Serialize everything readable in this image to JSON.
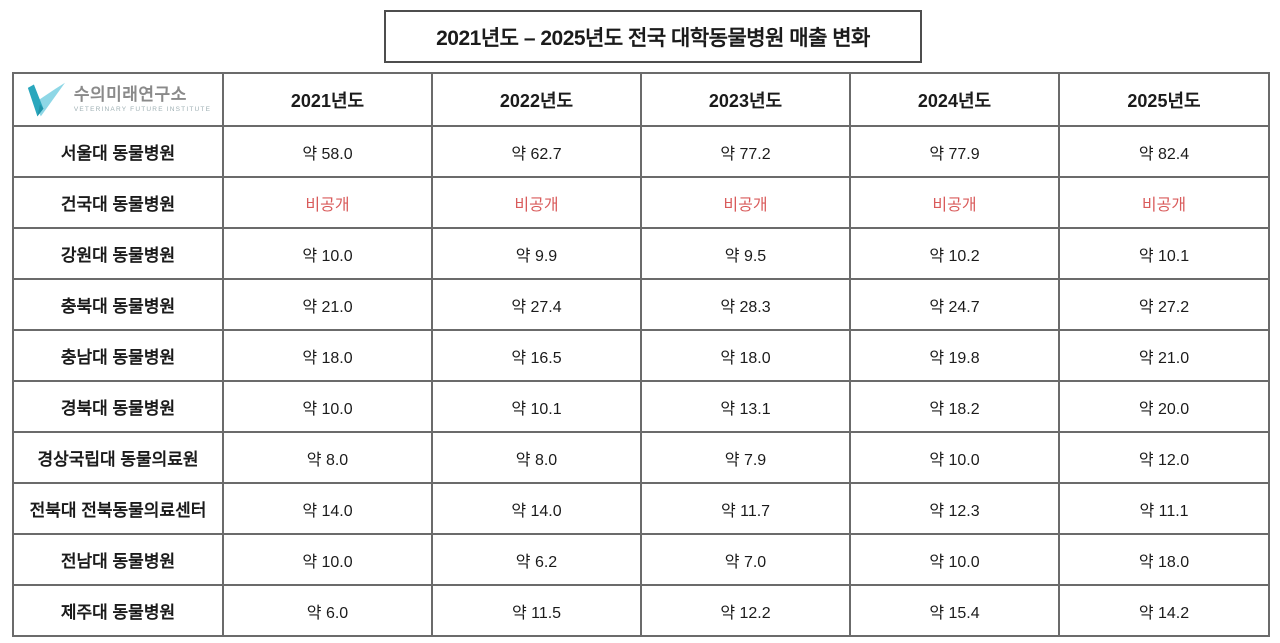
{
  "title_box": {
    "title": "2021년도 – 2025년도 전국 대학동물병원 매출 변화"
  },
  "logo": {
    "name_ko": "수의미래연구소",
    "name_en": "VETERINARY FUTURE INSTITUTE"
  },
  "colors": {
    "confidential_red": "#d95b5b",
    "table_border": "#6b6b6b",
    "logo_dark_teal": "#2aa7bd",
    "logo_light_blue": "#8ed7e6",
    "logo_text_gray": "#8a8a8a"
  },
  "chart_data": {
    "type": "table",
    "title": "2021년도 – 2025년도 전국 대학동물병원 매출 변화",
    "unit_note": "values shown as displayed, e.g. 약 = approx.",
    "columns": [
      "2021년도",
      "2022년도",
      "2023년도",
      "2024년도",
      "2025년도"
    ],
    "rows": [
      {
        "name": "서울대 동물병원",
        "confidential": false,
        "values": [
          "약 58.0",
          "약 62.7",
          "약 77.2",
          "약 77.9",
          "약 82.4"
        ]
      },
      {
        "name": "건국대 동물병원",
        "confidential": true,
        "values": [
          "비공개",
          "비공개",
          "비공개",
          "비공개",
          "비공개"
        ]
      },
      {
        "name": "강원대 동물병원",
        "confidential": false,
        "values": [
          "약 10.0",
          "약 9.9",
          "약 9.5",
          "약 10.2",
          "약 10.1"
        ]
      },
      {
        "name": "충북대 동물병원",
        "confidential": false,
        "values": [
          "약 21.0",
          "약 27.4",
          "약 28.3",
          "약 24.7",
          "약 27.2"
        ]
      },
      {
        "name": "충남대 동물병원",
        "confidential": false,
        "values": [
          "약 18.0",
          "약 16.5",
          "약 18.0",
          "약 19.8",
          "약 21.0"
        ]
      },
      {
        "name": "경북대 동물병원",
        "confidential": false,
        "values": [
          "약 10.0",
          "약 10.1",
          "약 13.1",
          "약 18.2",
          "약 20.0"
        ]
      },
      {
        "name": "경상국립대 동물의료원",
        "confidential": false,
        "values": [
          "약 8.0",
          "약 8.0",
          "약 7.9",
          "약 10.0",
          "약 12.0"
        ]
      },
      {
        "name": "전북대 전북동물의료센터",
        "confidential": false,
        "values": [
          "약 14.0",
          "약 14.0",
          "약 11.7",
          "약 12.3",
          "약 11.1"
        ]
      },
      {
        "name": "전남대 동물병원",
        "confidential": false,
        "values": [
          "약 10.0",
          "약 6.2",
          "약 7.0",
          "약 10.0",
          "약 18.0"
        ]
      },
      {
        "name": "제주대 동물병원",
        "confidential": false,
        "values": [
          "약 6.0",
          "약 11.5",
          "약 12.2",
          "약 15.4",
          "약 14.2"
        ]
      }
    ]
  }
}
